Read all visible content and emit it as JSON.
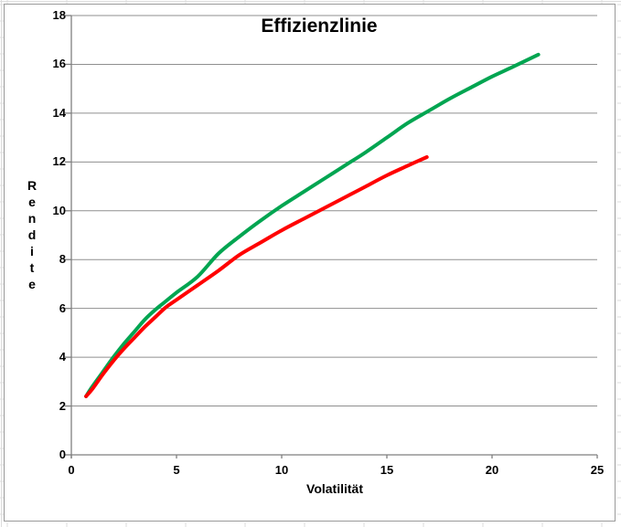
{
  "window": {
    "background_color": "#ffffff",
    "cell_line_color": "#dcdcdc",
    "chart_border_color": "#9a9a9a"
  },
  "chart": {
    "title": "Effizienzlinie",
    "y_axis_title_stacked": "R\ne\nn\nd\ni\nt\ne",
    "grid_color": "#8f8f8f",
    "axis_color": "#7f7f7f",
    "text_color": "#000000"
  },
  "chart_data": {
    "type": "line",
    "title": "Effizienzlinie",
    "xlabel": "Volatilität",
    "ylabel": "Rendite",
    "xlim": [
      0,
      25
    ],
    "ylim": [
      0,
      18
    ],
    "x_ticks": [
      0,
      5,
      10,
      15,
      20,
      25
    ],
    "y_ticks": [
      0,
      2,
      4,
      6,
      8,
      10,
      12,
      14,
      16,
      18
    ],
    "grid": "horizontal-only",
    "legend": "none",
    "series": [
      {
        "name": "green-efficiency-line",
        "color": "#00A551",
        "stroke_width": 4,
        "points": [
          [
            0.7,
            2.4
          ],
          [
            1,
            2.8
          ],
          [
            1.5,
            3.4
          ],
          [
            2,
            4.0
          ],
          [
            2.5,
            4.55
          ],
          [
            3,
            5.05
          ],
          [
            3.5,
            5.55
          ],
          [
            4,
            5.95
          ],
          [
            4.5,
            6.3
          ],
          [
            5,
            6.65
          ],
          [
            6,
            7.3
          ],
          [
            7,
            8.25
          ],
          [
            8,
            8.95
          ],
          [
            9,
            9.6
          ],
          [
            10,
            10.2
          ],
          [
            11,
            10.75
          ],
          [
            12,
            11.3
          ],
          [
            13,
            11.85
          ],
          [
            14,
            12.4
          ],
          [
            15,
            13.0
          ],
          [
            16,
            13.6
          ],
          [
            17,
            14.1
          ],
          [
            18,
            14.6
          ],
          [
            19,
            15.05
          ],
          [
            20,
            15.5
          ],
          [
            21,
            15.9
          ],
          [
            22.2,
            16.4
          ]
        ]
      },
      {
        "name": "red-efficiency-line",
        "color": "#FF0000",
        "stroke_width": 4,
        "points": [
          [
            0.7,
            2.4
          ],
          [
            1,
            2.7
          ],
          [
            1.5,
            3.3
          ],
          [
            2,
            3.85
          ],
          [
            2.5,
            4.35
          ],
          [
            3,
            4.8
          ],
          [
            3.5,
            5.25
          ],
          [
            4,
            5.65
          ],
          [
            4.5,
            6.05
          ],
          [
            5,
            6.35
          ],
          [
            6,
            6.95
          ],
          [
            7,
            7.55
          ],
          [
            8,
            8.2
          ],
          [
            9,
            8.7
          ],
          [
            10,
            9.2
          ],
          [
            11,
            9.65
          ],
          [
            12,
            10.1
          ],
          [
            13,
            10.55
          ],
          [
            14,
            11.0
          ],
          [
            15,
            11.45
          ],
          [
            16,
            11.85
          ],
          [
            16.9,
            12.2
          ]
        ]
      }
    ]
  }
}
